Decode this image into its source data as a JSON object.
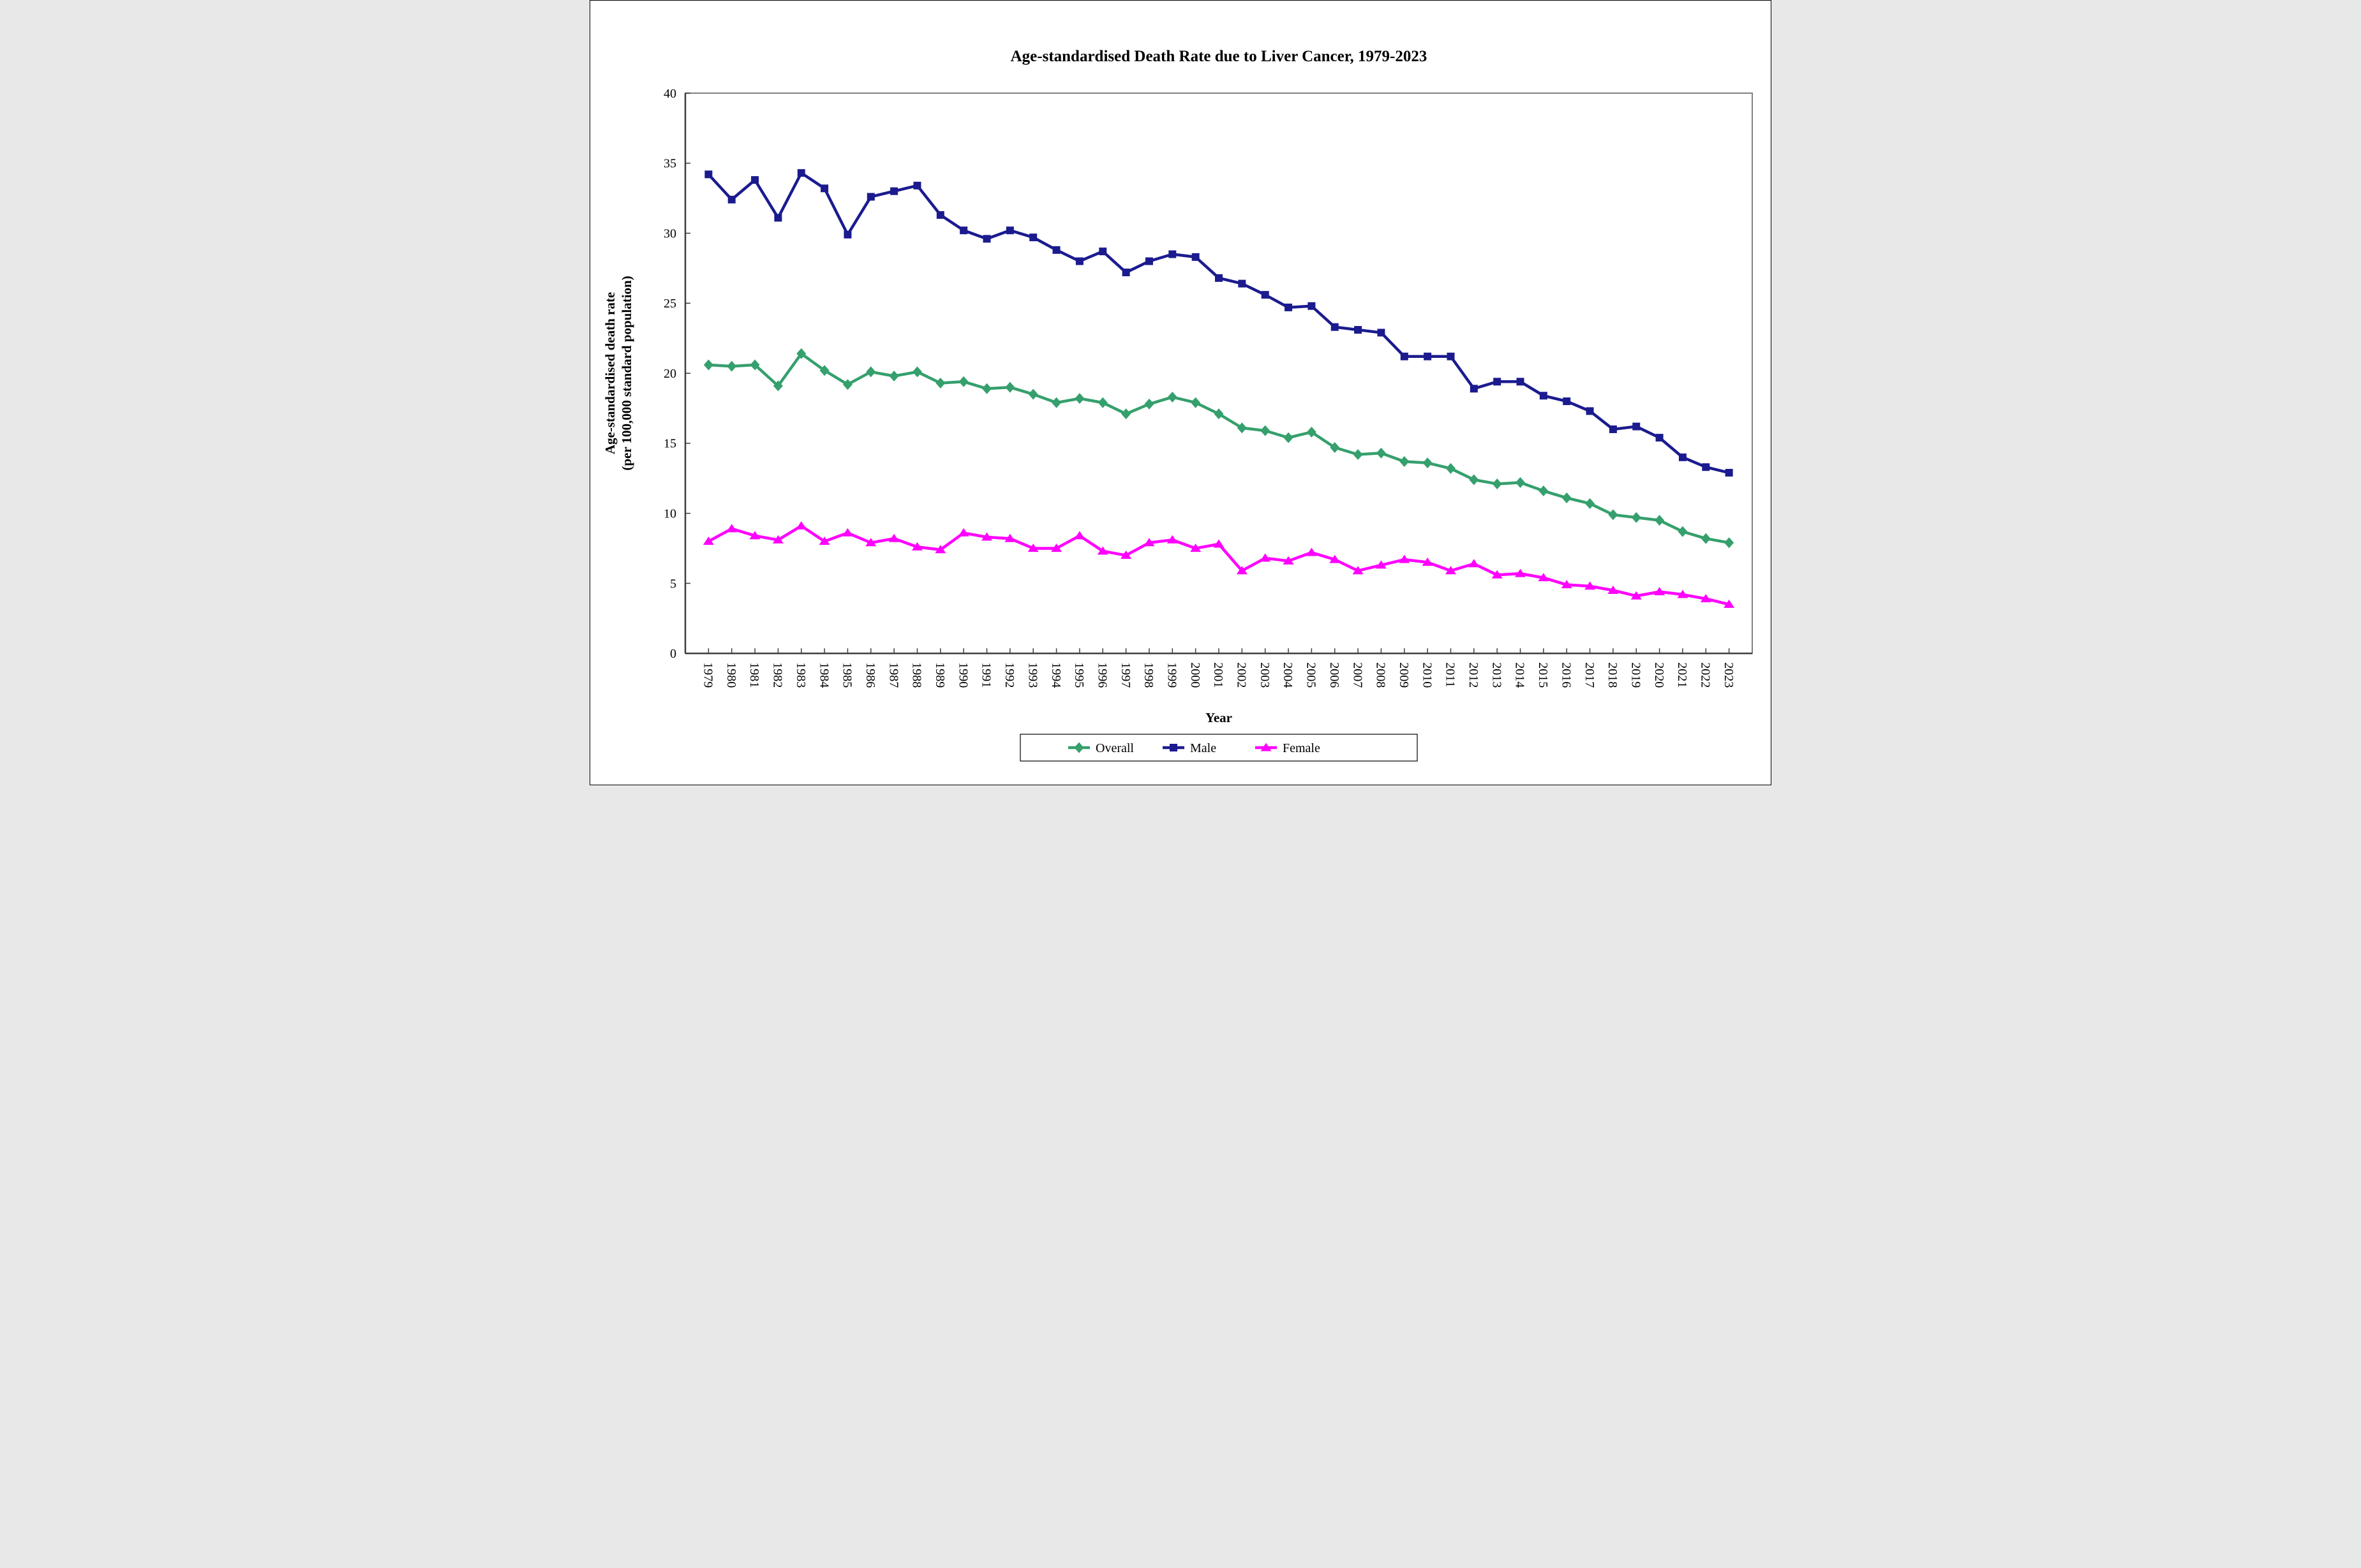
{
  "title": "Age-standardised Death Rate due to Liver Cancer, 1979-2023",
  "axes": {
    "x_label": "Year",
    "y_label_line1": "Age-standardised death rate",
    "y_label_line2": "(per 100,000 standard population)"
  },
  "chart_data": {
    "type": "line",
    "title": "Age-standardised Death Rate due to Liver Cancer, 1979-2023",
    "xlabel": "Year",
    "ylabel": "Age-standardised death rate (per 100,000 standard population)",
    "ylim": [
      0,
      40
    ],
    "y_ticks": [
      0,
      5,
      10,
      15,
      20,
      25,
      30,
      35,
      40
    ],
    "grid": false,
    "legend_position": "bottom",
    "categories": [
      "1979",
      "1980",
      "1981",
      "1982",
      "1983",
      "1984",
      "1985",
      "1986",
      "1987",
      "1988",
      "1989",
      "1990",
      "1991",
      "1992",
      "1993",
      "1994",
      "1995",
      "1996",
      "1997",
      "1998",
      "1999",
      "2000",
      "2001",
      "2002",
      "2003",
      "2004",
      "2005",
      "2006",
      "2007",
      "2008",
      "2009",
      "2010",
      "2011",
      "2012",
      "2013",
      "2014",
      "2015",
      "2016",
      "2017",
      "2018",
      "2019",
      "2020",
      "2021",
      "2022",
      "2023"
    ],
    "series": [
      {
        "name": "Overall",
        "color": "#35A06D",
        "marker": "diamond",
        "values": [
          20.6,
          20.5,
          20.6,
          19.1,
          21.4,
          20.2,
          19.2,
          20.1,
          19.8,
          20.1,
          19.3,
          19.4,
          18.9,
          19.0,
          18.5,
          17.9,
          18.2,
          17.9,
          17.1,
          17.8,
          18.3,
          17.9,
          17.1,
          16.1,
          15.9,
          15.4,
          15.8,
          14.7,
          14.2,
          14.3,
          13.7,
          13.6,
          13.2,
          12.4,
          12.1,
          12.2,
          11.6,
          11.1,
          10.7,
          9.9,
          9.7,
          9.5,
          8.7,
          8.2,
          7.9
        ]
      },
      {
        "name": "Male",
        "color": "#1B1B8F",
        "marker": "square",
        "values": [
          34.2,
          32.4,
          33.8,
          31.1,
          34.3,
          33.2,
          29.9,
          32.6,
          33.0,
          33.4,
          31.3,
          30.2,
          29.6,
          30.2,
          29.7,
          28.8,
          28.0,
          28.7,
          27.2,
          28.0,
          28.5,
          28.3,
          26.8,
          26.4,
          25.6,
          24.7,
          24.8,
          23.3,
          23.1,
          22.9,
          21.2,
          21.2,
          21.2,
          18.9,
          19.4,
          19.4,
          18.4,
          18.0,
          17.3,
          16.0,
          16.2,
          15.4,
          14.0,
          13.3,
          12.9
        ]
      },
      {
        "name": "Female",
        "color": "#FF00FF",
        "marker": "triangle",
        "values": [
          8.0,
          8.9,
          8.4,
          8.1,
          9.1,
          8.0,
          8.6,
          7.9,
          8.2,
          7.6,
          7.4,
          8.6,
          8.3,
          8.2,
          7.5,
          7.5,
          8.4,
          7.3,
          7.0,
          7.9,
          8.1,
          7.5,
          7.8,
          5.9,
          6.8,
          6.6,
          7.2,
          6.7,
          5.9,
          6.3,
          6.7,
          6.5,
          5.9,
          6.4,
          5.6,
          5.7,
          5.4,
          4.9,
          4.8,
          4.5,
          4.1,
          4.4,
          4.2,
          3.9,
          3.5
        ]
      }
    ]
  }
}
